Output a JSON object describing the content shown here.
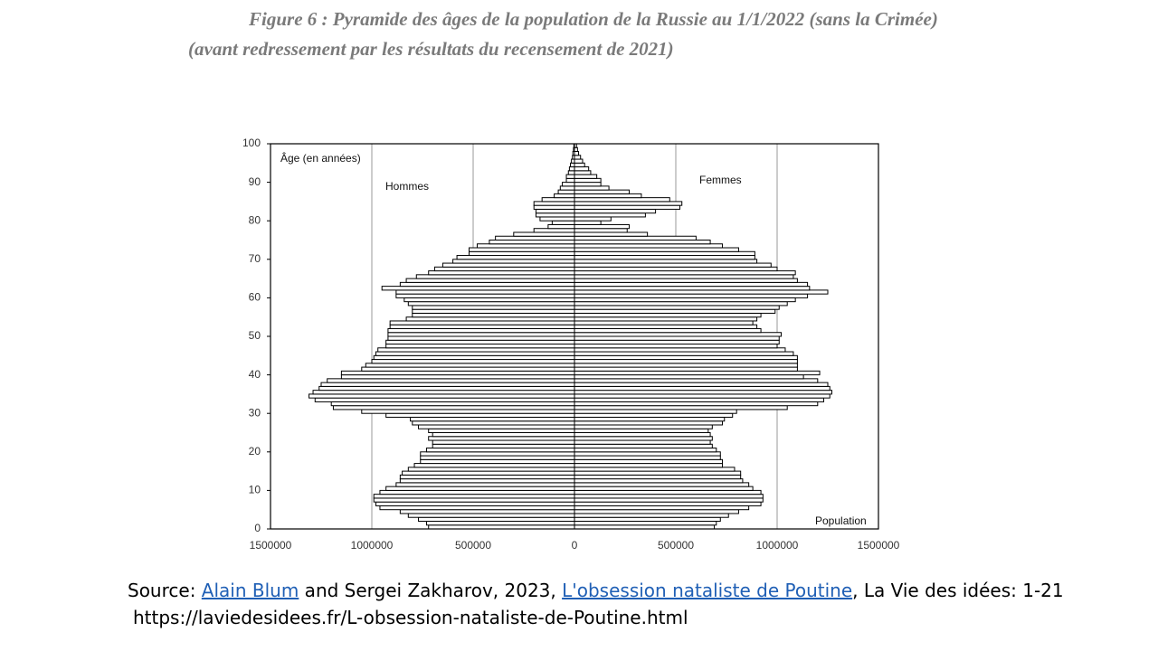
{
  "chart_data": {
    "type": "pyramid",
    "title": "Figure 6 : Pyramide des âges de la population de la Russie au 1/1/2022 (sans la Crimée)",
    "subtitle": "(avant redressement par les résultats du recensement de 2021)",
    "y_label": "Âge (en années)",
    "x_label": "Population",
    "xlim": [
      -1500000,
      1500000
    ],
    "xticks": [
      {
        "value": -1500000,
        "label": "1500000"
      },
      {
        "value": -1000000,
        "label": "1000000"
      },
      {
        "value": -500000,
        "label": "500000"
      },
      0,
      500000,
      1000000,
      1500000
    ],
    "ylim": [
      0,
      100
    ],
    "yticks": [
      0,
      10,
      20,
      30,
      40,
      50,
      60,
      70,
      80,
      90,
      100
    ],
    "grid": true,
    "series": [
      {
        "name": "Hommes",
        "color": "#ffffff",
        "side": "left",
        "values": [
          720000,
          730000,
          770000,
          820000,
          860000,
          960000,
          980000,
          990000,
          990000,
          960000,
          930000,
          880000,
          860000,
          860000,
          850000,
          820000,
          790000,
          760000,
          760000,
          760000,
          730000,
          700000,
          700000,
          720000,
          700000,
          720000,
          770000,
          800000,
          810000,
          930000,
          1050000,
          1190000,
          1200000,
          1280000,
          1310000,
          1290000,
          1260000,
          1250000,
          1220000,
          1150000,
          1150000,
          1050000,
          1030000,
          1000000,
          990000,
          980000,
          970000,
          930000,
          930000,
          920000,
          920000,
          920000,
          910000,
          910000,
          830000,
          800000,
          800000,
          800000,
          820000,
          840000,
          880000,
          880000,
          950000,
          860000,
          830000,
          780000,
          720000,
          690000,
          650000,
          600000,
          580000,
          520000,
          520000,
          480000,
          420000,
          390000,
          300000,
          200000,
          130000,
          110000,
          170000,
          190000,
          190000,
          200000,
          200000,
          160000,
          100000,
          80000,
          70000,
          60000,
          40000,
          40000,
          30000,
          25000,
          20000,
          15000,
          10000,
          8000,
          5000,
          3000,
          2000
        ]
      },
      {
        "name": "Femmes",
        "color": "#ffffff",
        "side": "right",
        "values": [
          690000,
          700000,
          720000,
          760000,
          810000,
          860000,
          920000,
          930000,
          930000,
          920000,
          880000,
          860000,
          830000,
          820000,
          820000,
          790000,
          730000,
          730000,
          720000,
          720000,
          700000,
          680000,
          670000,
          680000,
          670000,
          660000,
          680000,
          730000,
          740000,
          780000,
          800000,
          1050000,
          1200000,
          1230000,
          1260000,
          1270000,
          1260000,
          1250000,
          1200000,
          1130000,
          1210000,
          1100000,
          1100000,
          1100000,
          1100000,
          1080000,
          1040000,
          1000000,
          1010000,
          1010000,
          1020000,
          920000,
          900000,
          880000,
          900000,
          920000,
          990000,
          1010000,
          1050000,
          1090000,
          1150000,
          1250000,
          1160000,
          1150000,
          1100000,
          1080000,
          1090000,
          1000000,
          970000,
          900000,
          890000,
          890000,
          810000,
          730000,
          670000,
          600000,
          360000,
          260000,
          270000,
          130000,
          180000,
          350000,
          400000,
          520000,
          530000,
          470000,
          330000,
          270000,
          170000,
          130000,
          130000,
          110000,
          80000,
          70000,
          50000,
          40000,
          30000,
          20000,
          15000,
          10000,
          5000
        ]
      }
    ]
  },
  "source": {
    "prefix": "Source: ",
    "author_link": "Alain Blum",
    "middle": " and Sergei Zakharov, 2023, ",
    "title_link": "L'obsession nataliste de Poutine",
    "suffix": ", La Vie des idées: 1-21",
    "url": "https://laviedesidees.fr/L-obsession-nataliste-de-Poutine.html"
  }
}
